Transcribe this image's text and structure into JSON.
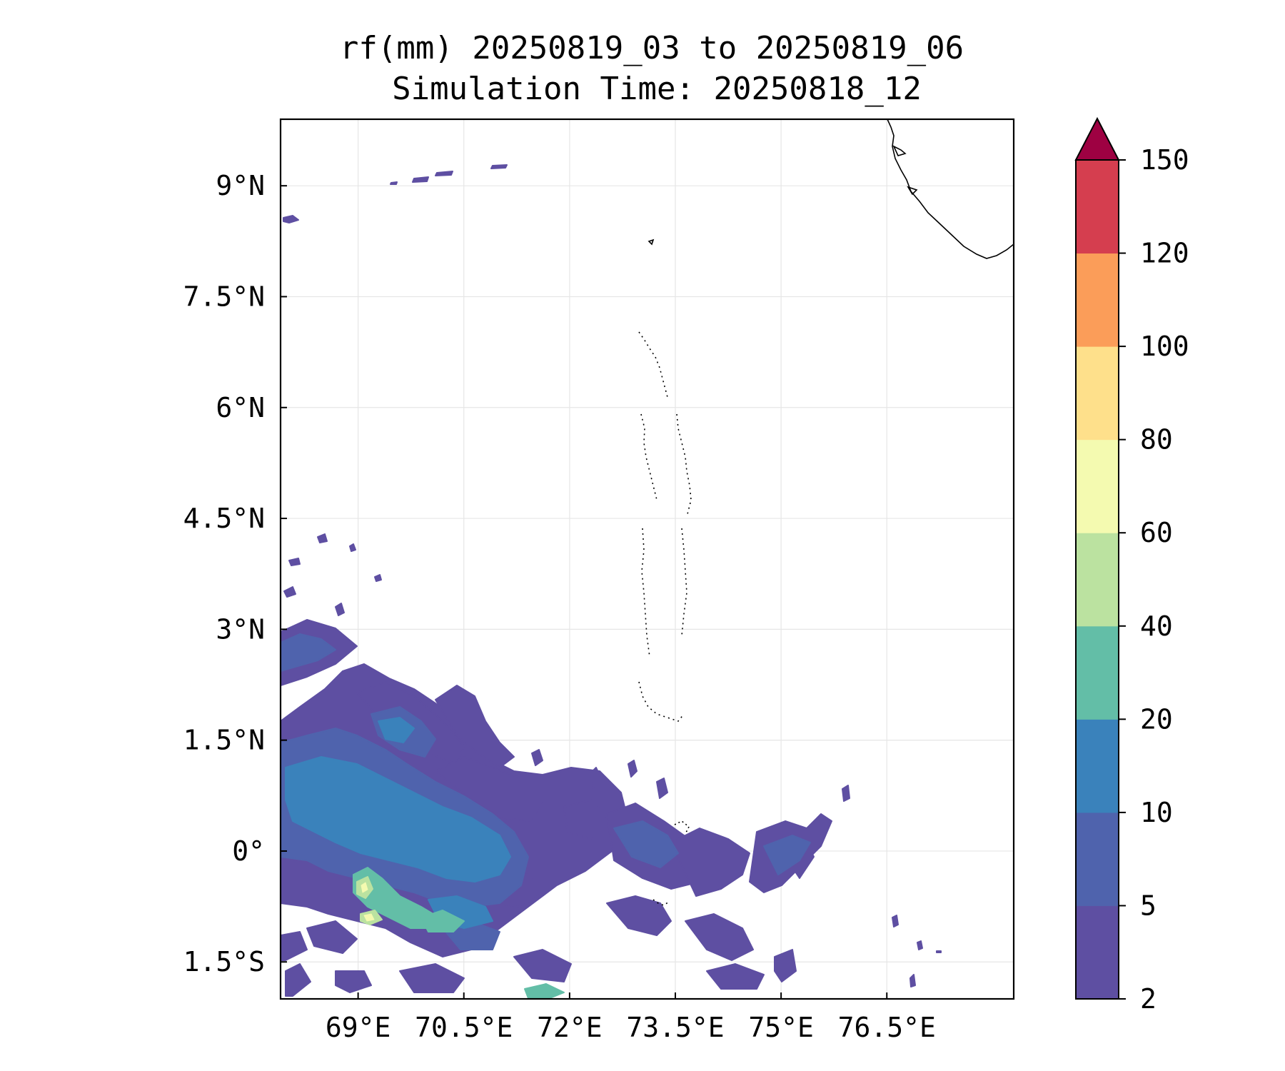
{
  "figure": {
    "title_line1": "rf(mm) 20250819_03 to 20250819_06",
    "title_line2": "Simulation Time: 20250818_12"
  },
  "map": {
    "lon_range": [
      67.9,
      78.3
    ],
    "lat_range": [
      -2.0,
      9.9
    ],
    "lon_ticks": [
      {
        "value": 69.0,
        "label": "69°E"
      },
      {
        "value": 70.5,
        "label": "70.5°E"
      },
      {
        "value": 72.0,
        "label": "72°E"
      },
      {
        "value": 73.5,
        "label": "73.5°E"
      },
      {
        "value": 75.0,
        "label": "75°E"
      },
      {
        "value": 76.5,
        "label": "76.5°E"
      }
    ],
    "lat_ticks": [
      {
        "value": 9.0,
        "label": "9°N"
      },
      {
        "value": 7.5,
        "label": "7.5°N"
      },
      {
        "value": 6.0,
        "label": "6°N"
      },
      {
        "value": 4.5,
        "label": "4.5°N"
      },
      {
        "value": 3.0,
        "label": "3°N"
      },
      {
        "value": 1.5,
        "label": "1.5°N"
      },
      {
        "value": 0.0,
        "label": "0°"
      },
      {
        "value": -1.5,
        "label": "1.5°S"
      }
    ],
    "gridlines": true
  },
  "colorbar": {
    "levels": [
      2,
      5,
      10,
      20,
      40,
      60,
      80,
      100,
      120,
      150
    ],
    "tick_labels": [
      "2",
      "5",
      "10",
      "20",
      "40",
      "60",
      "80",
      "100",
      "120",
      "150"
    ],
    "colors": [
      "#5e4fa2",
      "#4f63ad",
      "#3a82bb",
      "#63bea7",
      "#bbe2a0",
      "#f4fab0",
      "#fee08b",
      "#fb9d59",
      "#d53e4f"
    ],
    "extend_color": "#9e0142",
    "extend": "max"
  }
}
